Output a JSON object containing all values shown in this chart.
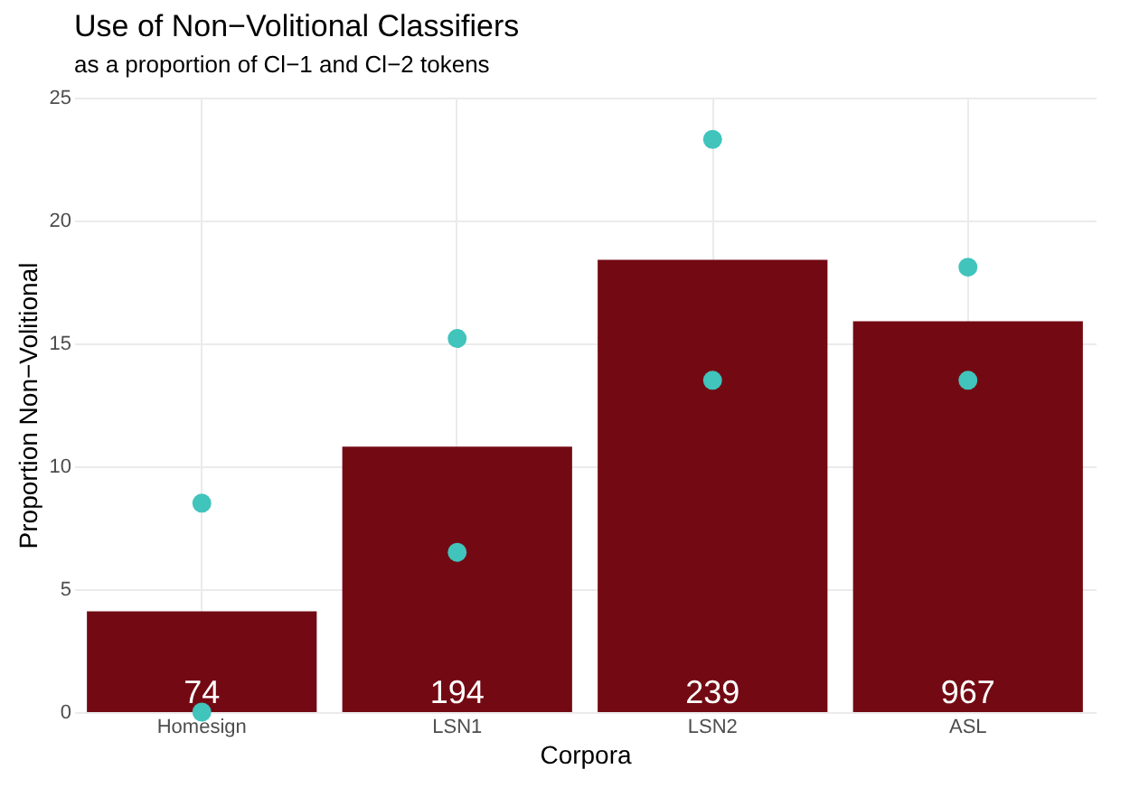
{
  "chart_data": {
    "type": "bar",
    "title": "Use of Non−Volitional Classifiers",
    "subtitle": "as a proportion of Cl−1 and Cl−2 tokens",
    "xlabel": "Corpora",
    "ylabel": "Proportion Non−Volitional",
    "categories": [
      "Homesign",
      "LSN1",
      "LSN2",
      "ASL"
    ],
    "series": [
      {
        "color": "#730a13",
        "values": [
          4.1,
          10.8,
          18.4,
          15.9
        ]
      },
      {
        "type": "scatter",
        "color": "#40c4bc",
        "x": [
          "Homesign",
          "Homesign",
          "LSN1",
          "LSN1",
          "LSN2",
          "LSN2",
          "ASL",
          "ASL"
        ],
        "values": [
          8.5,
          0,
          15.2,
          6.5,
          23.3,
          13.5,
          18.1,
          13.5
        ]
      }
    ],
    "annotations": [
      {
        "text": "74",
        "x": "Homesign",
        "y": 0
      },
      {
        "text": "194",
        "x": "LSN1",
        "y": 0
      },
      {
        "text": "239",
        "x": "LSN2",
        "y": 0
      },
      {
        "text": "967",
        "x": "ASL",
        "y": 0
      }
    ],
    "ylim": [
      0,
      25
    ],
    "yticks": [
      0,
      5,
      10,
      15,
      20,
      25
    ],
    "grid": true,
    "marker": "circle"
  }
}
